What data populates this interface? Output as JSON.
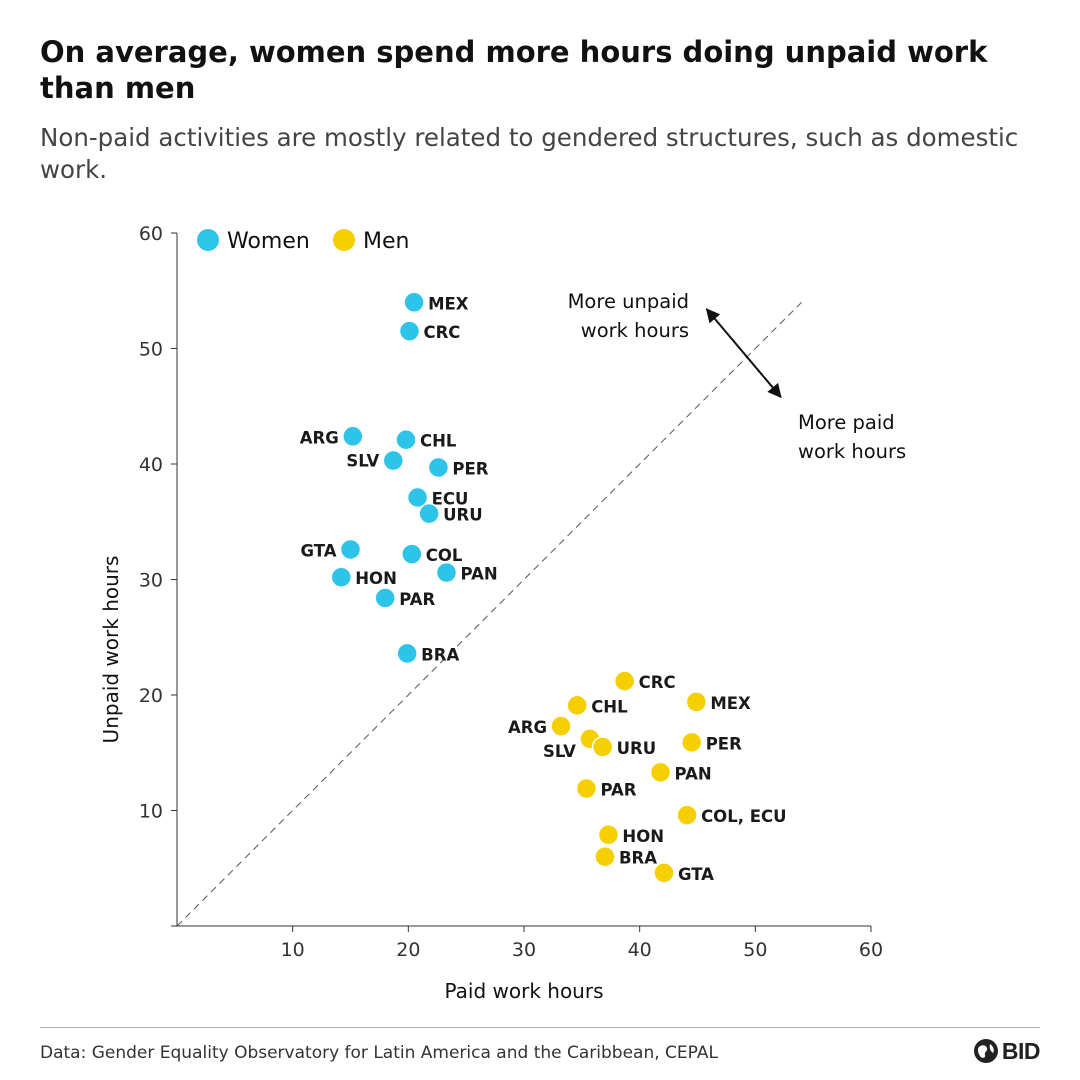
{
  "title": "On average, women spend more hours doing unpaid work than men",
  "subtitle": "Non-paid activities are mostly related to gendered structures, such as domestic work.",
  "source": "Data: Gender Equality Observatory for Latin America and the Caribbean, CEPAL",
  "logo": {
    "text": "BID",
    "icon": "bid-globe-icon"
  },
  "colors": {
    "women": "#2ec4ea",
    "men": "#f6cf00",
    "axis": "#333333",
    "diagonal": "#555555"
  },
  "chart_data": {
    "type": "scatter",
    "xlabel": "Paid work hours",
    "ylabel": "Unpaid work hours",
    "xlim": [
      0,
      60
    ],
    "ylim": [
      0,
      60
    ],
    "xticks": [
      10,
      20,
      30,
      40,
      50,
      60
    ],
    "yticks": [
      10,
      20,
      30,
      40,
      50,
      60
    ],
    "grid": false,
    "legend": "top-left",
    "reference_line": "y = x",
    "annotations": [
      {
        "text": [
          "More unpaid",
          "work hours"
        ]
      },
      {
        "text": [
          "More paid",
          "work hours"
        ]
      }
    ],
    "series": [
      {
        "name": "Women",
        "points": [
          {
            "label": "MEX",
            "x": 20.5,
            "y": 54.0
          },
          {
            "label": "CRC",
            "x": 20.1,
            "y": 51.5
          },
          {
            "label": "ARG",
            "x": 15.2,
            "y": 42.4
          },
          {
            "label": "CHL",
            "x": 19.8,
            "y": 42.1
          },
          {
            "label": "SLV",
            "x": 18.7,
            "y": 40.3
          },
          {
            "label": "PER",
            "x": 22.6,
            "y": 39.7
          },
          {
            "label": "ECU",
            "x": 20.8,
            "y": 37.1
          },
          {
            "label": "URU",
            "x": 21.8,
            "y": 35.7
          },
          {
            "label": "GTA",
            "x": 15.0,
            "y": 32.6
          },
          {
            "label": "COL",
            "x": 20.3,
            "y": 32.2
          },
          {
            "label": "PAN",
            "x": 23.3,
            "y": 30.6
          },
          {
            "label": "HON",
            "x": 14.2,
            "y": 30.2
          },
          {
            "label": "PAR",
            "x": 18.0,
            "y": 28.4
          },
          {
            "label": "BRA",
            "x": 19.9,
            "y": 23.6
          }
        ]
      },
      {
        "name": "Men",
        "points": [
          {
            "label": "CRC",
            "x": 38.7,
            "y": 21.2
          },
          {
            "label": "MEX",
            "x": 44.9,
            "y": 19.4
          },
          {
            "label": "CHL",
            "x": 34.6,
            "y": 19.1
          },
          {
            "label": "ARG",
            "x": 33.2,
            "y": 17.3
          },
          {
            "label": "SLV",
            "x": 35.7,
            "y": 16.2
          },
          {
            "label": "PER",
            "x": 44.5,
            "y": 15.9
          },
          {
            "label": "URU",
            "x": 36.8,
            "y": 15.5
          },
          {
            "label": "PAN",
            "x": 41.8,
            "y": 13.3
          },
          {
            "label": "PAR",
            "x": 35.4,
            "y": 11.9
          },
          {
            "label": "COL, ECU",
            "x": 44.1,
            "y": 9.6
          },
          {
            "label": "HON",
            "x": 37.3,
            "y": 7.9
          },
          {
            "label": "BRA",
            "x": 37.0,
            "y": 6.0
          },
          {
            "label": "GTA",
            "x": 42.1,
            "y": 4.6
          }
        ]
      }
    ]
  }
}
